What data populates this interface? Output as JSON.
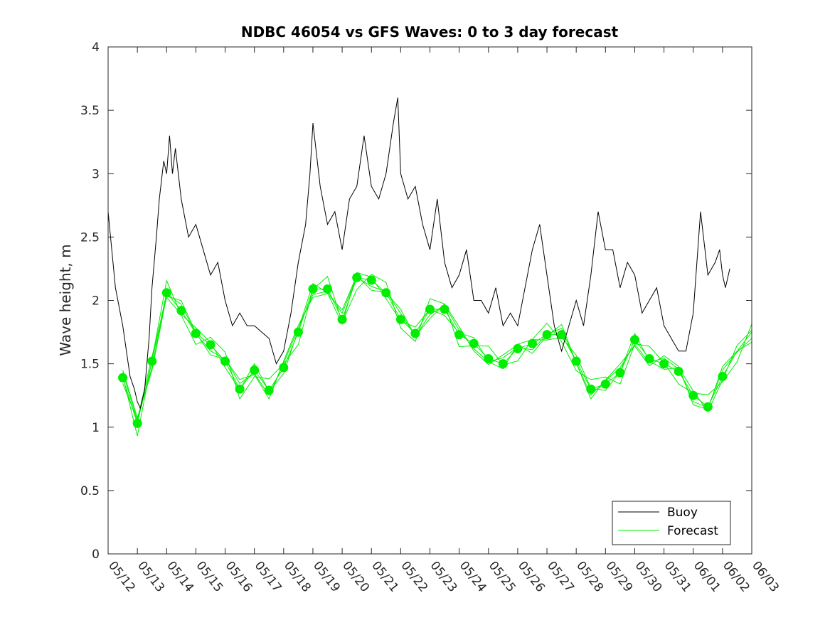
{
  "chart_data": {
    "type": "line",
    "title": "NDBC 46054 vs GFS Waves: 0 to 3 day forecast",
    "xlabel": "",
    "ylabel": "Wave height, m",
    "x_tick_labels": [
      "05/12",
      "05/13",
      "05/14",
      "05/15",
      "05/16",
      "05/17",
      "05/18",
      "05/19",
      "05/20",
      "05/21",
      "05/22",
      "05/23",
      "05/24",
      "05/25",
      "05/26",
      "05/27",
      "05/28",
      "05/29",
      "05/30",
      "05/31",
      "06/01",
      "06/02",
      "06/03"
    ],
    "y_ticks": [
      0,
      0.5,
      1,
      1.5,
      2,
      2.5,
      3,
      3.5,
      4
    ],
    "xlim": [
      0,
      22
    ],
    "ylim": [
      0,
      4
    ],
    "x_units": "days since 05/12",
    "grid": false,
    "legend_position": "bottom-right",
    "colors": {
      "buoy": "#000000",
      "forecast": "#00ee00"
    },
    "series": [
      {
        "name": "Buoy",
        "x": [
          0.0,
          0.25,
          0.5,
          0.75,
          0.9,
          1.0,
          1.1,
          1.25,
          1.4,
          1.5,
          1.65,
          1.75,
          1.9,
          2.0,
          2.1,
          2.2,
          2.3,
          2.5,
          2.75,
          3.0,
          3.25,
          3.5,
          3.75,
          4.0,
          4.25,
          4.5,
          4.75,
          5.0,
          5.25,
          5.5,
          5.75,
          6.0,
          6.25,
          6.5,
          6.75,
          6.9,
          7.0,
          7.25,
          7.5,
          7.75,
          8.0,
          8.25,
          8.5,
          8.75,
          9.0,
          9.25,
          9.5,
          9.75,
          9.9,
          10.0,
          10.25,
          10.5,
          10.75,
          11.0,
          11.25,
          11.5,
          11.75,
          12.0,
          12.25,
          12.5,
          12.75,
          13.0,
          13.25,
          13.5,
          13.75,
          14.0,
          14.25,
          14.5,
          14.75,
          15.0,
          15.25,
          15.5,
          15.75,
          16.0,
          16.25,
          16.5,
          16.75,
          17.0,
          17.25,
          17.5,
          17.75,
          18.0,
          18.25,
          18.5,
          18.75,
          19.0,
          19.25,
          19.5,
          19.75,
          20.0,
          20.25,
          20.5,
          20.75,
          20.9,
          21.0,
          21.1,
          21.25
        ],
        "values": [
          2.7,
          2.1,
          1.8,
          1.4,
          1.3,
          1.2,
          1.15,
          1.3,
          1.7,
          2.1,
          2.5,
          2.8,
          3.1,
          3.0,
          3.3,
          3.0,
          3.2,
          2.8,
          2.5,
          2.6,
          2.4,
          2.2,
          2.3,
          2.0,
          1.8,
          1.9,
          1.8,
          1.8,
          1.75,
          1.7,
          1.5,
          1.6,
          1.9,
          2.3,
          2.6,
          3.0,
          3.4,
          2.9,
          2.6,
          2.7,
          2.4,
          2.8,
          2.9,
          3.3,
          2.9,
          2.8,
          3.0,
          3.4,
          3.6,
          3.0,
          2.8,
          2.9,
          2.6,
          2.4,
          2.8,
          2.3,
          2.1,
          2.2,
          2.4,
          2.0,
          2.0,
          1.9,
          2.1,
          1.8,
          1.9,
          1.8,
          2.1,
          2.4,
          2.6,
          2.2,
          1.8,
          1.6,
          1.8,
          2.0,
          1.8,
          2.2,
          2.7,
          2.4,
          2.4,
          2.1,
          2.3,
          2.2,
          1.9,
          2.0,
          2.1,
          1.8,
          1.7,
          1.6,
          1.6,
          1.9,
          2.7,
          2.2,
          2.3,
          2.4,
          2.2,
          2.1,
          2.25
        ]
      },
      {
        "name": "Forecast",
        "x": [
          0.5,
          1.0,
          1.5,
          2.0,
          2.5,
          3.0,
          3.5,
          4.0,
          4.5,
          5.0,
          5.5,
          6.0,
          6.5,
          7.0,
          7.5,
          8.0,
          8.5,
          9.0,
          9.5,
          10.0,
          10.5,
          11.0,
          11.5,
          12.0,
          12.5,
          13.0,
          13.5,
          14.0,
          14.5,
          15.0,
          15.5,
          16.0,
          16.5,
          17.0,
          17.5,
          18.0,
          18.5,
          19.0,
          19.5,
          20.0,
          20.5,
          21.0,
          21.5,
          22.0
        ],
        "values": [
          1.39,
          1.03,
          1.52,
          2.06,
          1.92,
          1.74,
          1.65,
          1.52,
          1.3,
          1.45,
          1.29,
          1.47,
          1.75,
          2.09,
          2.09,
          1.85,
          2.18,
          2.16,
          2.06,
          1.85,
          1.74,
          1.93,
          1.93,
          1.73,
          1.66,
          1.54,
          1.5,
          1.62,
          1.66,
          1.73,
          1.73,
          1.52,
          1.3,
          1.34,
          1.43,
          1.69,
          1.54,
          1.5,
          1.44,
          1.25,
          1.16,
          1.4,
          1.6,
          1.75
        ]
      }
    ],
    "forecast_markers_x": [
      0.5,
      1.0,
      1.5,
      2.0,
      2.5,
      3.0,
      3.5,
      4.0,
      4.5,
      5.0,
      5.5,
      6.0,
      6.5,
      7.0,
      7.5,
      8.0,
      8.5,
      9.0,
      9.5,
      10.0,
      10.5,
      11.0,
      11.5,
      12.0,
      12.5,
      13.0,
      13.5,
      14.0,
      14.5,
      15.0,
      15.5,
      16.0,
      16.5,
      17.0,
      17.5,
      18.0,
      18.5,
      19.0,
      19.5,
      20.0,
      20.5,
      21.0
    ],
    "forecast_markers_values": [
      1.39,
      1.03,
      1.52,
      2.06,
      1.92,
      1.74,
      1.65,
      1.52,
      1.3,
      1.45,
      1.29,
      1.47,
      1.75,
      2.09,
      2.09,
      1.85,
      2.18,
      2.16,
      2.06,
      1.85,
      1.74,
      1.93,
      1.93,
      1.73,
      1.66,
      1.54,
      1.5,
      1.62,
      1.66,
      1.73,
      1.73,
      1.52,
      1.3,
      1.34,
      1.43,
      1.69,
      1.54,
      1.5,
      1.44,
      1.25,
      1.16,
      1.4
    ]
  }
}
